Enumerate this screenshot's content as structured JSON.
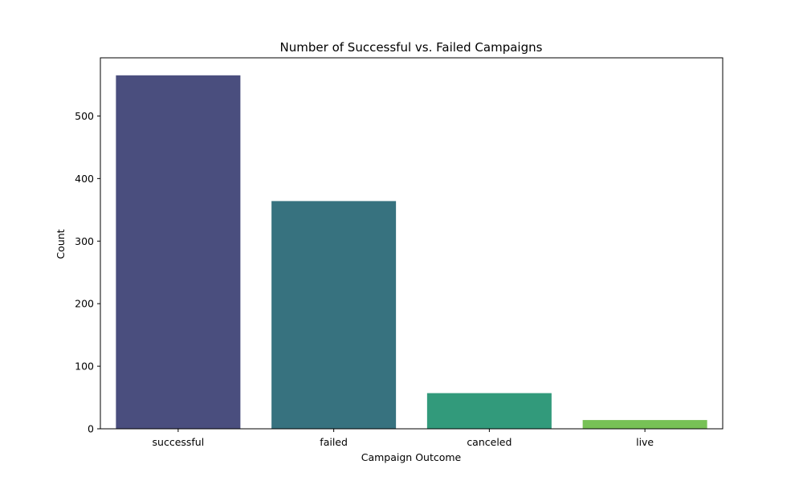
{
  "chart_data": {
    "type": "bar",
    "title": "Number of Successful vs. Failed Campaigns",
    "xlabel": "Campaign Outcome",
    "ylabel": "Count",
    "categories": [
      "successful",
      "failed",
      "canceled",
      "live"
    ],
    "values": [
      565,
      364,
      57,
      14
    ],
    "ylim": [
      0,
      593
    ],
    "yticks": [
      0,
      100,
      200,
      300,
      400,
      500
    ],
    "grid": false,
    "colors": [
      "#4a4e7e",
      "#37727f",
      "#329a7b",
      "#77c156"
    ]
  }
}
